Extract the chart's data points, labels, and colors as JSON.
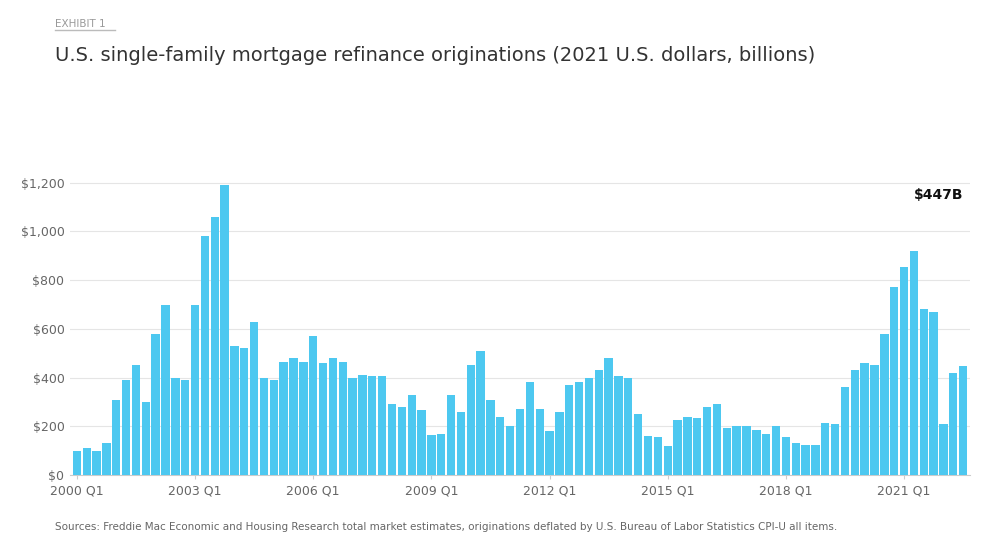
{
  "title": "U.S. single-family mortgage refinance originations (2021 U.S. dollars, billions)",
  "exhibit_label": "EXHIBIT 1",
  "bar_color": "#4DC8F0",
  "annotation_text": "$447B",
  "footer": "Sources: Freddie Mac Economic and Housing Research total market estimates, originations deflated by U.S. Bureau of Labor Statistics CPI-U all items.",
  "ytick_labels": [
    "$0",
    "$200",
    "$400",
    "$600",
    "$800",
    "$1,000",
    "$1,200"
  ],
  "ytick_values": [
    0,
    200,
    400,
    600,
    800,
    1000,
    1200
  ],
  "ylim": [
    0,
    1300
  ],
  "xtick_labels": [
    "2000 Q1",
    "2003 Q1",
    "2006 Q1",
    "2009 Q1",
    "2012 Q1",
    "2015 Q1",
    "2018 Q1",
    "2021 Q1"
  ],
  "xtick_positions": [
    0,
    12,
    24,
    36,
    48,
    60,
    72,
    84
  ],
  "values": [
    100,
    110,
    100,
    130,
    310,
    390,
    450,
    300,
    580,
    700,
    400,
    390,
    700,
    980,
    1060,
    1190,
    530,
    520,
    630,
    400,
    390,
    465,
    480,
    465,
    570,
    460,
    480,
    465,
    400,
    410,
    405,
    405,
    290,
    280,
    330,
    265,
    165,
    170,
    330,
    260,
    450,
    510,
    310,
    240,
    200,
    270,
    380,
    270,
    180,
    260,
    370,
    380,
    400,
    430,
    480,
    405,
    400,
    250,
    160,
    155,
    120,
    225,
    240,
    235,
    280,
    290,
    195,
    200,
    200,
    185,
    170,
    200,
    155,
    130,
    125,
    125,
    215,
    210,
    360,
    430,
    460,
    450,
    580,
    770,
    855,
    920,
    680,
    670,
    210,
    420,
    447
  ]
}
